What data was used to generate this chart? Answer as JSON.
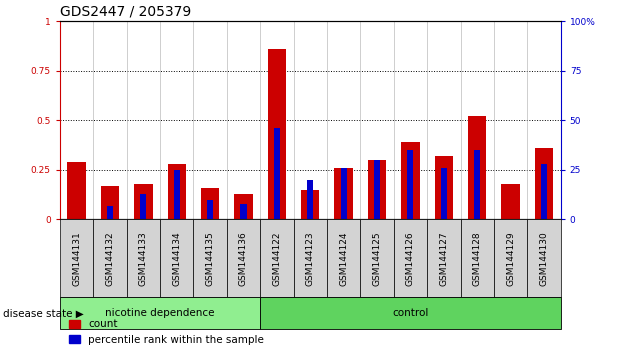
{
  "title": "GDS2447 / 205379",
  "samples": [
    "GSM144131",
    "GSM144132",
    "GSM144133",
    "GSM144134",
    "GSM144135",
    "GSM144136",
    "GSM144122",
    "GSM144123",
    "GSM144124",
    "GSM144125",
    "GSM144126",
    "GSM144127",
    "GSM144128",
    "GSM144129",
    "GSM144130"
  ],
  "red_values": [
    0.29,
    0.17,
    0.18,
    0.28,
    0.16,
    0.13,
    0.86,
    0.15,
    0.26,
    0.3,
    0.39,
    0.32,
    0.52,
    0.18,
    0.36
  ],
  "blue_values": [
    0.0,
    0.07,
    0.13,
    0.25,
    0.1,
    0.08,
    0.46,
    0.2,
    0.26,
    0.3,
    0.35,
    0.26,
    0.35,
    0.0,
    0.28
  ],
  "group1_label": "nicotine dependence",
  "group1_count": 6,
  "group2_label": "control",
  "group2_count": 9,
  "disease_state_label": "disease state",
  "legend_count": "count",
  "legend_pct": "percentile rank within the sample",
  "ylim_left": [
    0,
    1
  ],
  "ylim_right": [
    0,
    100
  ],
  "yticks_left": [
    0,
    0.25,
    0.5,
    0.75,
    1.0
  ],
  "yticks_right": [
    0,
    25,
    50,
    75,
    100
  ],
  "ytick_labels_left": [
    "0",
    "0.25",
    "0.5",
    "0.75",
    "1"
  ],
  "ytick_labels_right": [
    "0",
    "25",
    "50",
    "75",
    "100%"
  ],
  "red_color": "#cc0000",
  "blue_color": "#0000cc",
  "group1_color": "#90ee90",
  "group2_color": "#5fd35f",
  "tick_bg_color": "#d3d3d3",
  "fig_width": 6.3,
  "fig_height": 3.54,
  "title_fontsize": 10,
  "label_fontsize": 7.5,
  "tick_fontsize": 6.5
}
